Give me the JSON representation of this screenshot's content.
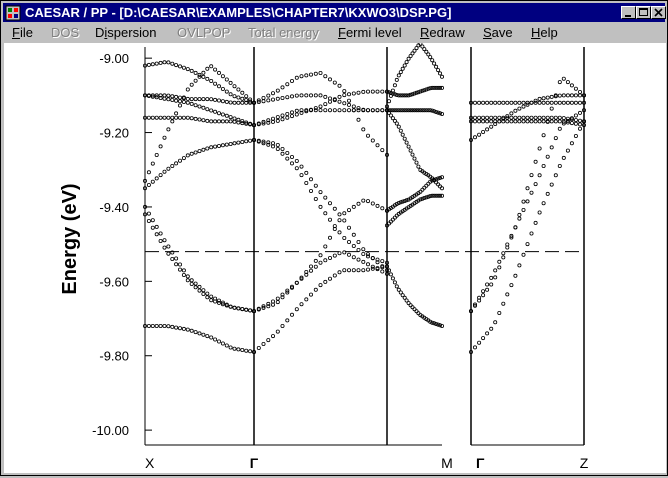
{
  "window": {
    "title": "CAESAR / PP - [D:\\CAESAR\\EXAMPLES\\CHAPTER7\\KXWO3\\DSP.PG]"
  },
  "window_buttons": [
    "minimize-icon",
    "maximize-icon",
    "close-icon"
  ],
  "menu": [
    {
      "label": "File",
      "mnemonic": "F",
      "enabled": true
    },
    {
      "label": "DOS",
      "mnemonic": "D",
      "enabled": false
    },
    {
      "label": "Dispersion",
      "mnemonic": "i",
      "enabled": true
    },
    {
      "label": "OVLPOP",
      "mnemonic": "O",
      "enabled": false
    },
    {
      "label": "Total energy",
      "mnemonic": "T",
      "enabled": false
    },
    {
      "label": "Fermi level",
      "mnemonic": "F",
      "enabled": true
    },
    {
      "label": "Redraw",
      "mnemonic": "R",
      "enabled": true
    },
    {
      "label": "Save",
      "mnemonic": "S",
      "enabled": true
    },
    {
      "label": "Help",
      "mnemonic": "H",
      "enabled": true
    }
  ],
  "chart_data": {
    "type": "scatter",
    "title": "",
    "ylabel": "Energy (eV)",
    "ylim": [
      -10.04,
      -8.97
    ],
    "yticks": [
      {
        "value": -9.0,
        "label": "-9.00"
      },
      {
        "value": -9.2,
        "label": "-9.20"
      },
      {
        "value": -9.4,
        "label": "-9.40"
      },
      {
        "value": -9.6,
        "label": "-9.60"
      },
      {
        "value": -9.8,
        "label": "-9.80"
      },
      {
        "value": -10.0,
        "label": "-10.00"
      }
    ],
    "k_labels": [
      "X",
      "Γ",
      "M",
      "Γ",
      "Z"
    ],
    "segments": [
      {
        "from": "X",
        "to": "Γ"
      },
      {
        "from": "Γ",
        "to": "M"
      },
      {
        "from": "M",
        "to": "Γ"
      },
      {
        "from": "Γ",
        "to": "Z"
      }
    ],
    "fermi_level": -9.52,
    "grid": false,
    "marker": "open-circle",
    "bands": [
      {
        "panel": 0,
        "y": [
          -9.02,
          -9.01,
          -9.03,
          -9.06,
          -9.1,
          -9.12
        ]
      },
      {
        "panel": 0,
        "y": [
          -9.1,
          -9.1,
          -9.11,
          -9.11,
          -9.12,
          -9.12
        ]
      },
      {
        "panel": 0,
        "y": [
          -9.1,
          -9.11,
          -9.12,
          -9.14,
          -9.16,
          -9.18
        ]
      },
      {
        "panel": 0,
        "y": [
          -9.16,
          -9.16,
          -9.16,
          -9.17,
          -9.17,
          -9.18
        ]
      },
      {
        "panel": 0,
        "y": [
          -9.33,
          -9.2,
          -9.08,
          -9.02,
          -9.07,
          -9.12
        ]
      },
      {
        "panel": 0,
        "y": [
          -9.35,
          -9.3,
          -9.26,
          -9.24,
          -9.23,
          -9.22
        ]
      },
      {
        "panel": 0,
        "y": [
          -9.4,
          -9.5,
          -9.59,
          -9.64,
          -9.67,
          -9.68
        ]
      },
      {
        "panel": 0,
        "y": [
          -9.42,
          -9.52,
          -9.6,
          -9.65,
          -9.67,
          -9.68
        ]
      },
      {
        "panel": 0,
        "y": [
          -9.72,
          -9.72,
          -9.73,
          -9.75,
          -9.78,
          -9.79
        ]
      },
      {
        "panel": 1,
        "y": [
          -9.22,
          -9.24,
          -9.3,
          -9.4,
          -9.48,
          -9.53,
          -9.55
        ]
      },
      {
        "panel": 1,
        "y": [
          -9.22,
          -9.23,
          -9.28,
          -9.36,
          -9.43,
          -9.52,
          -9.57
        ]
      },
      {
        "panel": 1,
        "y": [
          -9.12,
          -9.09,
          -9.05,
          -9.04,
          -9.08,
          -9.2,
          -9.26
        ]
      },
      {
        "panel": 1,
        "y": [
          -9.12,
          -9.11,
          -9.1,
          -9.1,
          -9.12,
          -9.14,
          -9.14
        ]
      },
      {
        "panel": 1,
        "y": [
          -9.18,
          -9.17,
          -9.15,
          -9.13,
          -9.1,
          -9.09,
          -9.09
        ]
      },
      {
        "panel": 1,
        "y": [
          -9.18,
          -9.16,
          -9.14,
          -9.14,
          -9.14,
          -9.14,
          -9.14
        ]
      },
      {
        "panel": 1,
        "y": [
          -9.68,
          -9.66,
          -9.6,
          -9.53,
          -9.42,
          -9.38,
          -9.41
        ]
      },
      {
        "panel": 1,
        "y": [
          -9.68,
          -9.65,
          -9.6,
          -9.55,
          -9.52,
          -9.55,
          -9.58
        ]
      },
      {
        "panel": 1,
        "y": [
          -9.79,
          -9.74,
          -9.67,
          -9.61,
          -9.57,
          -9.57,
          -9.56
        ]
      },
      {
        "panel": 2,
        "y": [
          -9.13,
          -9.05,
          -9.0,
          -8.96,
          -9.0,
          -9.05
        ]
      },
      {
        "panel": 2,
        "y": [
          -9.14,
          -9.18,
          -9.24,
          -9.3,
          -9.32,
          -9.35
        ]
      },
      {
        "panel": 2,
        "y": [
          -9.09,
          -9.1,
          -9.1,
          -9.09,
          -9.08,
          -9.08
        ]
      },
      {
        "panel": 2,
        "y": [
          -9.14,
          -9.14,
          -9.14,
          -9.14,
          -9.14,
          -9.15
        ]
      },
      {
        "panel": 2,
        "y": [
          -9.41,
          -9.39,
          -9.38,
          -9.36,
          -9.33,
          -9.32
        ]
      },
      {
        "panel": 2,
        "y": [
          -9.45,
          -9.42,
          -9.4,
          -9.38,
          -9.37,
          -9.37
        ]
      },
      {
        "panel": 2,
        "y": [
          -9.56,
          -9.62,
          -9.66,
          -9.69,
          -9.71,
          -9.72
        ]
      },
      {
        "panel": 3,
        "y": [
          -9.12,
          -9.12,
          -9.12,
          -9.12,
          -9.12,
          -9.12
        ]
      },
      {
        "panel": 3,
        "y": [
          -9.16,
          -9.16,
          -9.16,
          -9.16,
          -9.16,
          -9.17
        ]
      },
      {
        "panel": 3,
        "y": [
          -9.17,
          -9.17,
          -9.17,
          -9.17,
          -9.17,
          -9.18
        ]
      },
      {
        "panel": 3,
        "y": [
          -9.22,
          -9.18,
          -9.14,
          -9.11,
          -9.1,
          -9.1
        ]
      },
      {
        "panel": 3,
        "y": [
          -9.68,
          -9.6,
          -9.45,
          -9.25,
          -9.05,
          -9.1
        ]
      },
      {
        "panel": 3,
        "y": [
          -9.68,
          -9.58,
          -9.45,
          -9.32,
          -9.18,
          -9.14
        ]
      },
      {
        "panel": 3,
        "y": [
          -9.79,
          -9.72,
          -9.58,
          -9.42,
          -9.28,
          -9.17
        ]
      }
    ]
  }
}
